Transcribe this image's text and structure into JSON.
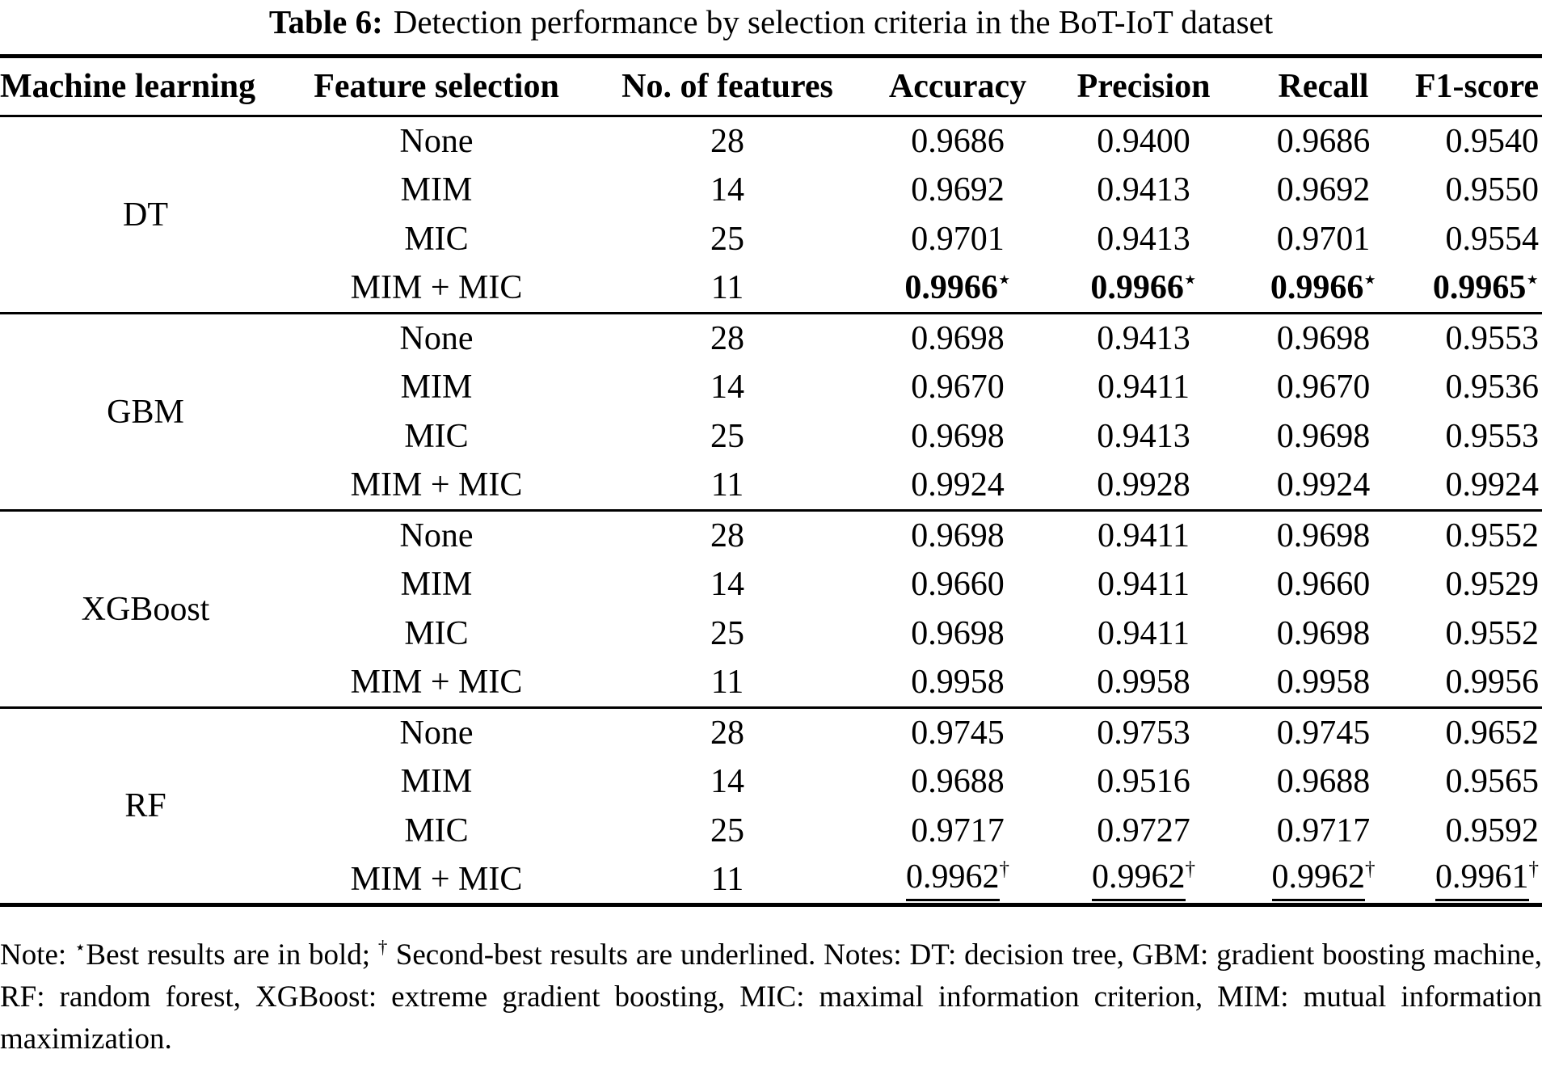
{
  "title": {
    "label": "Table 6:",
    "text": "Detection performance by selection criteria in the BoT-IoT dataset"
  },
  "columns": [
    "Machine learning",
    "Feature selection",
    "No. of features",
    "Accuracy",
    "Precision",
    "Recall",
    "F1-score"
  ],
  "markers": {
    "best": "⋆",
    "second": "†"
  },
  "groups": [
    {
      "model": "DT",
      "rows": [
        {
          "selection": "None",
          "features": "28",
          "accuracy": "0.9686",
          "precision": "0.9400",
          "recall": "0.9686",
          "f1": "0.9540",
          "emphasis": null
        },
        {
          "selection": "MIM",
          "features": "14",
          "accuracy": "0.9692",
          "precision": "0.9413",
          "recall": "0.9692",
          "f1": "0.9550",
          "emphasis": null
        },
        {
          "selection": "MIC",
          "features": "25",
          "accuracy": "0.9701",
          "precision": "0.9413",
          "recall": "0.9701",
          "f1": "0.9554",
          "emphasis": null
        },
        {
          "selection": "MIM + MIC",
          "features": "11",
          "accuracy": "0.9966",
          "precision": "0.9966",
          "recall": "0.9966",
          "f1": "0.9965",
          "emphasis": "best"
        }
      ]
    },
    {
      "model": "GBM",
      "rows": [
        {
          "selection": "None",
          "features": "28",
          "accuracy": "0.9698",
          "precision": "0.9413",
          "recall": "0.9698",
          "f1": "0.9553",
          "emphasis": null
        },
        {
          "selection": "MIM",
          "features": "14",
          "accuracy": "0.9670",
          "precision": "0.9411",
          "recall": "0.9670",
          "f1": "0.9536",
          "emphasis": null
        },
        {
          "selection": "MIC",
          "features": "25",
          "accuracy": "0.9698",
          "precision": "0.9413",
          "recall": "0.9698",
          "f1": "0.9553",
          "emphasis": null
        },
        {
          "selection": "MIM + MIC",
          "features": "11",
          "accuracy": "0.9924",
          "precision": "0.9928",
          "recall": "0.9924",
          "f1": "0.9924",
          "emphasis": null
        }
      ]
    },
    {
      "model": "XGBoost",
      "rows": [
        {
          "selection": "None",
          "features": "28",
          "accuracy": "0.9698",
          "precision": "0.9411",
          "recall": "0.9698",
          "f1": "0.9552",
          "emphasis": null
        },
        {
          "selection": "MIM",
          "features": "14",
          "accuracy": "0.9660",
          "precision": "0.9411",
          "recall": "0.9660",
          "f1": "0.9529",
          "emphasis": null
        },
        {
          "selection": "MIC",
          "features": "25",
          "accuracy": "0.9698",
          "precision": "0.9411",
          "recall": "0.9698",
          "f1": "0.9552",
          "emphasis": null
        },
        {
          "selection": "MIM + MIC",
          "features": "11",
          "accuracy": "0.9958",
          "precision": "0.9958",
          "recall": "0.9958",
          "f1": "0.9956",
          "emphasis": null
        }
      ]
    },
    {
      "model": "RF",
      "rows": [
        {
          "selection": "None",
          "features": "28",
          "accuracy": "0.9745",
          "precision": "0.9753",
          "recall": "0.9745",
          "f1": "0.9652",
          "emphasis": null
        },
        {
          "selection": "MIM",
          "features": "14",
          "accuracy": "0.9688",
          "precision": "0.9516",
          "recall": "0.9688",
          "f1": "0.9565",
          "emphasis": null
        },
        {
          "selection": "MIC",
          "features": "25",
          "accuracy": "0.9717",
          "precision": "0.9727",
          "recall": "0.9717",
          "f1": "0.9592",
          "emphasis": null
        },
        {
          "selection": "MIM + MIC",
          "features": "11",
          "accuracy": "0.9962",
          "precision": "0.9962",
          "recall": "0.9962",
          "f1": "0.9961",
          "emphasis": "second"
        }
      ]
    }
  ],
  "note": {
    "p1": "Note: ",
    "star": "⋆",
    "p2": "Best results are in bold; ",
    "dagger": "†",
    "p3": " Second-best results are underlined. Notes: DT: decision tree, GBM: gradient boosting machine, RF: random forest, XGBoost: extreme gradient boosting, MIC: maximal information criterion, MIM: mutual information maximization."
  }
}
